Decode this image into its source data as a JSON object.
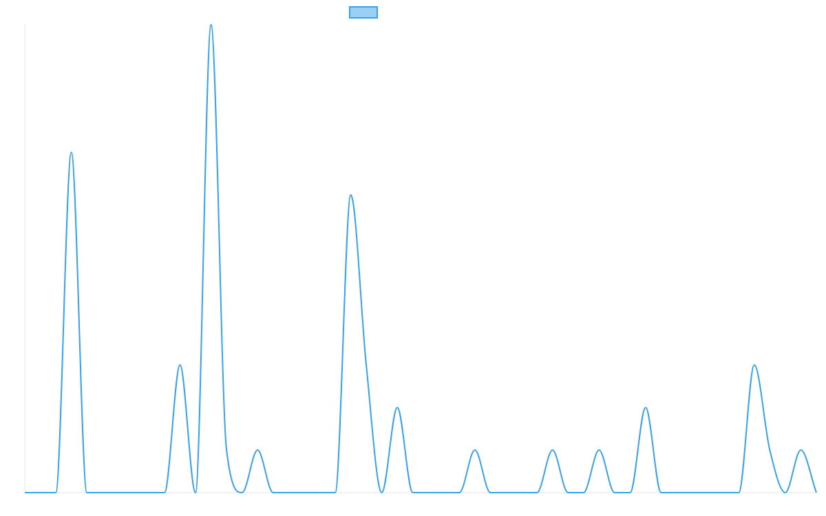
{
  "chart_data": {
    "type": "line",
    "interpolation": "monotone",
    "series": [
      {
        "color": "#36a2eb",
        "fill": "#9ad0f5",
        "values": [
          0,
          0,
          0,
          8,
          0,
          0,
          0,
          0,
          0,
          0,
          3,
          0,
          11,
          1,
          0,
          1,
          0,
          0,
          0,
          0,
          0,
          7,
          3,
          0,
          2,
          0,
          0,
          0,
          0,
          1,
          0,
          0,
          0,
          0,
          1,
          0,
          0,
          1,
          0,
          0,
          2,
          0,
          0,
          0,
          0,
          0,
          0,
          3,
          1,
          0,
          1,
          0
        ]
      }
    ],
    "ylim": [
      0,
      11
    ],
    "legend": "top"
  }
}
